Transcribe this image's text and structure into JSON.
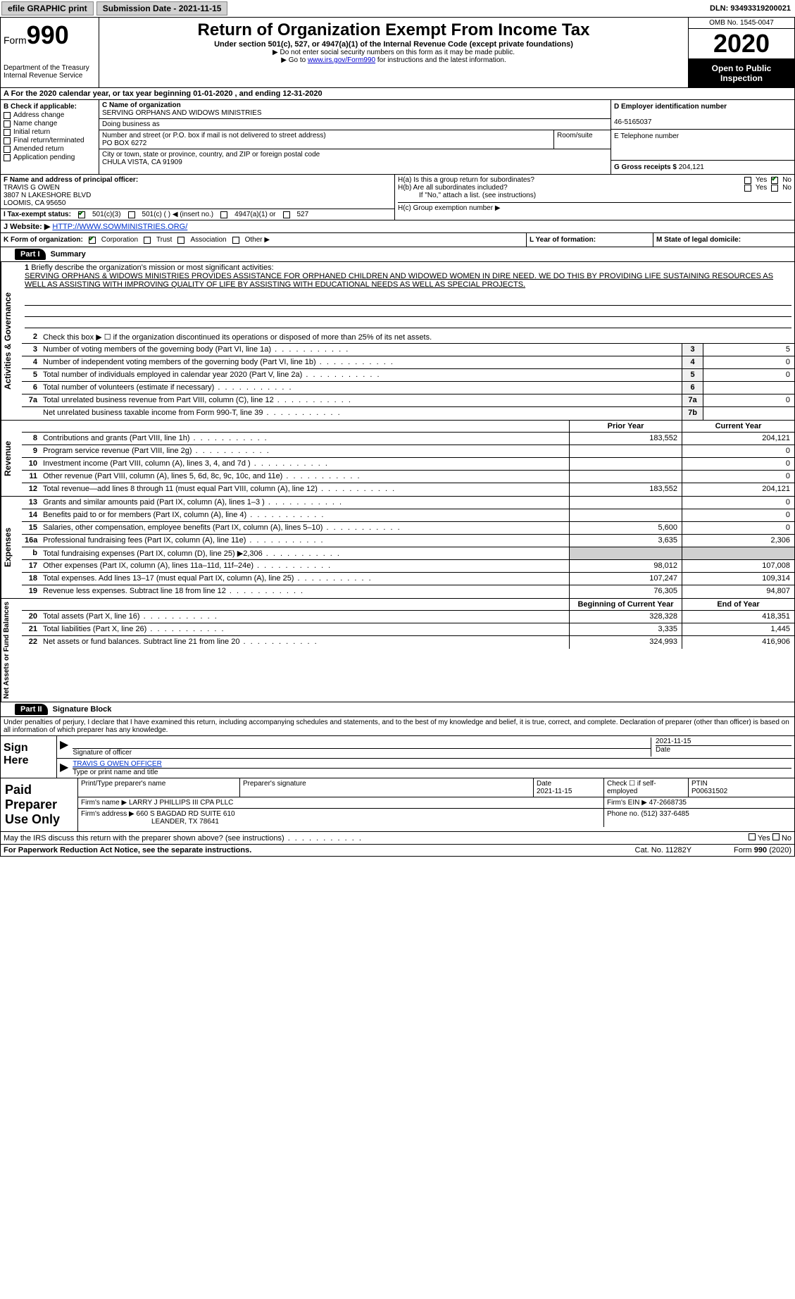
{
  "topbar": {
    "efile": "efile GRAPHIC print",
    "submission": "Submission Date - 2021-11-15",
    "dln_label": "DLN:",
    "dln": "93493319200021"
  },
  "header": {
    "form_prefix": "Form",
    "form_num": "990",
    "dept": "Department of the Treasury\nInternal Revenue Service",
    "title": "Return of Organization Exempt From Income Tax",
    "subtitle": "Under section 501(c), 527, or 4947(a)(1) of the Internal Revenue Code (except private foundations)",
    "note1": "▶ Do not enter social security numbers on this form as it may be made public.",
    "note2_pre": "▶ Go to ",
    "note2_link": "www.irs.gov/Form990",
    "note2_post": " for instructions and the latest information.",
    "omb": "OMB No. 1545-0047",
    "year": "2020",
    "inspect": "Open to Public Inspection"
  },
  "row_a": "A For the 2020 calendar year, or tax year beginning 01-01-2020   , and ending 12-31-2020",
  "box_b": {
    "label": "B Check if applicable:",
    "items": [
      "Address change",
      "Name change",
      "Initial return",
      "Final return/terminated",
      "Amended return",
      "Application pending"
    ]
  },
  "box_c": {
    "name_label": "C Name of organization",
    "name": "SERVING ORPHANS AND WIDOWS MINISTRIES",
    "dba_label": "Doing business as",
    "addr_label": "Number and street (or P.O. box if mail is not delivered to street address)",
    "room_label": "Room/suite",
    "addr": "PO BOX 6272",
    "city_label": "City or town, state or province, country, and ZIP or foreign postal code",
    "city": "CHULA VISTA, CA  91909"
  },
  "box_d": {
    "ein_label": "D Employer identification number",
    "ein": "46-5165037",
    "phone_label": "E Telephone number",
    "gross_label": "G Gross receipts $",
    "gross": "204,121"
  },
  "box_f": {
    "label": "F Name and address of principal officer:",
    "name": "TRAVIS G OWEN",
    "addr1": "3807 N LAKESHORE BLVD",
    "addr2": "LOOMIS, CA  95650"
  },
  "box_h": {
    "a_label": "H(a)  Is this a group return for subordinates?",
    "b_label": "H(b)  Are all subordinates included?",
    "note": "If \"No,\" attach a list. (see instructions)",
    "c_label": "H(c)  Group exemption number ▶",
    "yes": "Yes",
    "no": "No"
  },
  "box_i": {
    "label": "I   Tax-exempt status:",
    "opt1": "501(c)(3)",
    "opt2": "501(c) (  ) ◀ (insert no.)",
    "opt3": "4947(a)(1) or",
    "opt4": "527"
  },
  "box_j": {
    "label": "J   Website: ▶",
    "url": "HTTP://WWW.SOWMINISTRIES.ORG/"
  },
  "box_k": {
    "label": "K Form of organization:",
    "opts": [
      "Corporation",
      "Trust",
      "Association",
      "Other ▶"
    ],
    "l_label": "L Year of formation:",
    "m_label": "M State of legal domicile:"
  },
  "part1": {
    "num": "Part I",
    "title": "Summary",
    "side_gov": "Activities & Governance",
    "side_rev": "Revenue",
    "side_exp": "Expenses",
    "side_net": "Net Assets or Fund Balances",
    "line1_label": "Briefly describe the organization's mission or most significant activities:",
    "mission": "SERVING ORPHANS & WIDOWS MINISTRIES PROVIDES ASSISTANCE FOR ORPHANED CHILDREN AND WIDOWED WOMEN IN DIRE NEED. WE DO THIS BY PROVIDING LIFE SUSTAINING RESOURCES AS WELL AS ASSISTING WITH IMPROVING QUALITY OF LIFE BY ASSISTING WITH EDUCATIONAL NEEDS AS WELL AS SPECIAL PROJECTS.",
    "line2": "Check this box ▶ ☐ if the organization discontinued its operations or disposed of more than 25% of its net assets.",
    "lines_gov": [
      {
        "n": "3",
        "t": "Number of voting members of the governing body (Part VI, line 1a)",
        "box": "3",
        "v": "5"
      },
      {
        "n": "4",
        "t": "Number of independent voting members of the governing body (Part VI, line 1b)",
        "box": "4",
        "v": "0"
      },
      {
        "n": "5",
        "t": "Total number of individuals employed in calendar year 2020 (Part V, line 2a)",
        "box": "5",
        "v": "0"
      },
      {
        "n": "6",
        "t": "Total number of volunteers (estimate if necessary)",
        "box": "6",
        "v": ""
      },
      {
        "n": "7a",
        "t": "Total unrelated business revenue from Part VIII, column (C), line 12",
        "box": "7a",
        "v": "0"
      },
      {
        "n": "",
        "t": "Net unrelated business taxable income from Form 990-T, line 39",
        "box": "7b",
        "v": ""
      }
    ],
    "hdr_prior": "Prior Year",
    "hdr_curr": "Current Year",
    "lines_rev": [
      {
        "n": "8",
        "t": "Contributions and grants (Part VIII, line 1h)",
        "p": "183,552",
        "c": "204,121"
      },
      {
        "n": "9",
        "t": "Program service revenue (Part VIII, line 2g)",
        "p": "",
        "c": "0"
      },
      {
        "n": "10",
        "t": "Investment income (Part VIII, column (A), lines 3, 4, and 7d )",
        "p": "",
        "c": "0"
      },
      {
        "n": "11",
        "t": "Other revenue (Part VIII, column (A), lines 5, 6d, 8c, 9c, 10c, and 11e)",
        "p": "",
        "c": "0"
      },
      {
        "n": "12",
        "t": "Total revenue—add lines 8 through 11 (must equal Part VIII, column (A), line 12)",
        "p": "183,552",
        "c": "204,121"
      }
    ],
    "lines_exp": [
      {
        "n": "13",
        "t": "Grants and similar amounts paid (Part IX, column (A), lines 1–3 )",
        "p": "",
        "c": "0"
      },
      {
        "n": "14",
        "t": "Benefits paid to or for members (Part IX, column (A), line 4)",
        "p": "",
        "c": "0"
      },
      {
        "n": "15",
        "t": "Salaries, other compensation, employee benefits (Part IX, column (A), lines 5–10)",
        "p": "5,600",
        "c": "0"
      },
      {
        "n": "16a",
        "t": "Professional fundraising fees (Part IX, column (A), line 11e)",
        "p": "3,635",
        "c": "2,306"
      },
      {
        "n": "b",
        "t": "Total fundraising expenses (Part IX, column (D), line 25) ▶2,306",
        "p": "shade",
        "c": "shade"
      },
      {
        "n": "17",
        "t": "Other expenses (Part IX, column (A), lines 11a–11d, 11f–24e)",
        "p": "98,012",
        "c": "107,008"
      },
      {
        "n": "18",
        "t": "Total expenses. Add lines 13–17 (must equal Part IX, column (A), line 25)",
        "p": "107,247",
        "c": "109,314"
      },
      {
        "n": "19",
        "t": "Revenue less expenses. Subtract line 18 from line 12",
        "p": "76,305",
        "c": "94,807"
      }
    ],
    "hdr_beg": "Beginning of Current Year",
    "hdr_end": "End of Year",
    "lines_net": [
      {
        "n": "20",
        "t": "Total assets (Part X, line 16)",
        "p": "328,328",
        "c": "418,351"
      },
      {
        "n": "21",
        "t": "Total liabilities (Part X, line 26)",
        "p": "3,335",
        "c": "1,445"
      },
      {
        "n": "22",
        "t": "Net assets or fund balances. Subtract line 21 from line 20",
        "p": "324,993",
        "c": "416,906"
      }
    ]
  },
  "part2": {
    "num": "Part II",
    "title": "Signature Block",
    "decl": "Under penalties of perjury, I declare that I have examined this return, including accompanying schedules and statements, and to the best of my knowledge and belief, it is true, correct, and complete. Declaration of preparer (other than officer) is based on all information of which preparer has any knowledge.",
    "sign_here": "Sign Here",
    "sig_officer": "Signature of officer",
    "sig_date": "2021-11-15",
    "date_label": "Date",
    "officer_name": "TRAVIS G OWEN  OFFICER",
    "type_name": "Type or print name and title",
    "paid_prep": "Paid Preparer Use Only",
    "print_name": "Print/Type preparer's name",
    "prep_sig": "Preparer's signature",
    "prep_date": "2021-11-15",
    "check_self": "Check ☐ if self-employed",
    "ptin_label": "PTIN",
    "ptin": "P00631502",
    "firm_name_label": "Firm's name    ▶",
    "firm_name": "LARRY J PHILLIPS III CPA PLLC",
    "firm_ein_label": "Firm's EIN ▶",
    "firm_ein": "47-2668735",
    "firm_addr_label": "Firm's address ▶",
    "firm_addr1": "660 S BAGDAD RD SUITE 610",
    "firm_addr2": "LEANDER, TX  78641",
    "phone_label": "Phone no.",
    "phone": "(512) 337-6485",
    "may_irs": "May the IRS discuss this return with the preparer shown above? (see instructions)"
  },
  "footer": {
    "left": "For Paperwork Reduction Act Notice, see the separate instructions.",
    "mid": "Cat. No. 11282Y",
    "right_pre": "Form ",
    "right_bold": "990",
    "right_post": " (2020)"
  }
}
